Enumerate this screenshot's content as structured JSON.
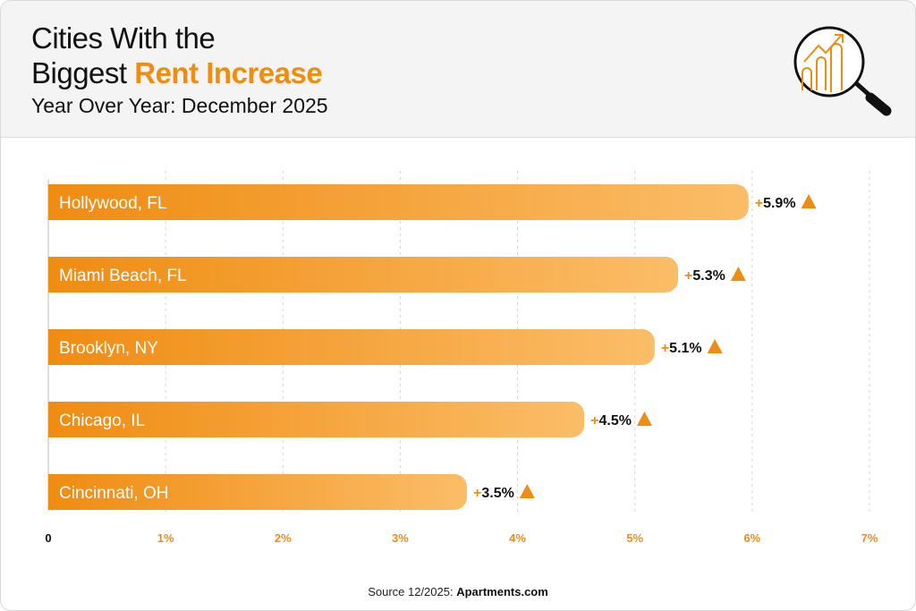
{
  "header": {
    "title_line1": "Cities With the",
    "title_line2_plain": "Biggest ",
    "title_line2_highlight": "Rent Increase",
    "subtitle": "Year Over Year: December 2025",
    "icon": "magnifier-chart-icon"
  },
  "colors": {
    "accent": "#ef8c12",
    "bar_start": "#ef8c12",
    "bar_end": "#fbbd68",
    "text": "#111111"
  },
  "chart_data": {
    "type": "bar",
    "orientation": "horizontal",
    "categories": [
      "Hollywood, FL",
      "Miami Beach, FL",
      "Brooklyn, NY",
      "Chicago, IL",
      "Cincinnati, OH"
    ],
    "values": [
      5.9,
      5.3,
      5.1,
      4.5,
      3.5
    ],
    "data_labels": [
      "+5.9%",
      "+5.3%",
      "+5.1%",
      "+4.5%",
      "+3.5%"
    ],
    "xlim": [
      0,
      7
    ],
    "x_ticks": [
      "0",
      "1%",
      "2%",
      "3%",
      "4%",
      "5%",
      "6%",
      "7%"
    ],
    "grid": "vertical dashed",
    "marker": "up-triangle-icon"
  },
  "footer": {
    "source_prefix": "Source 12/2025: ",
    "source_name": "Apartments.com"
  }
}
